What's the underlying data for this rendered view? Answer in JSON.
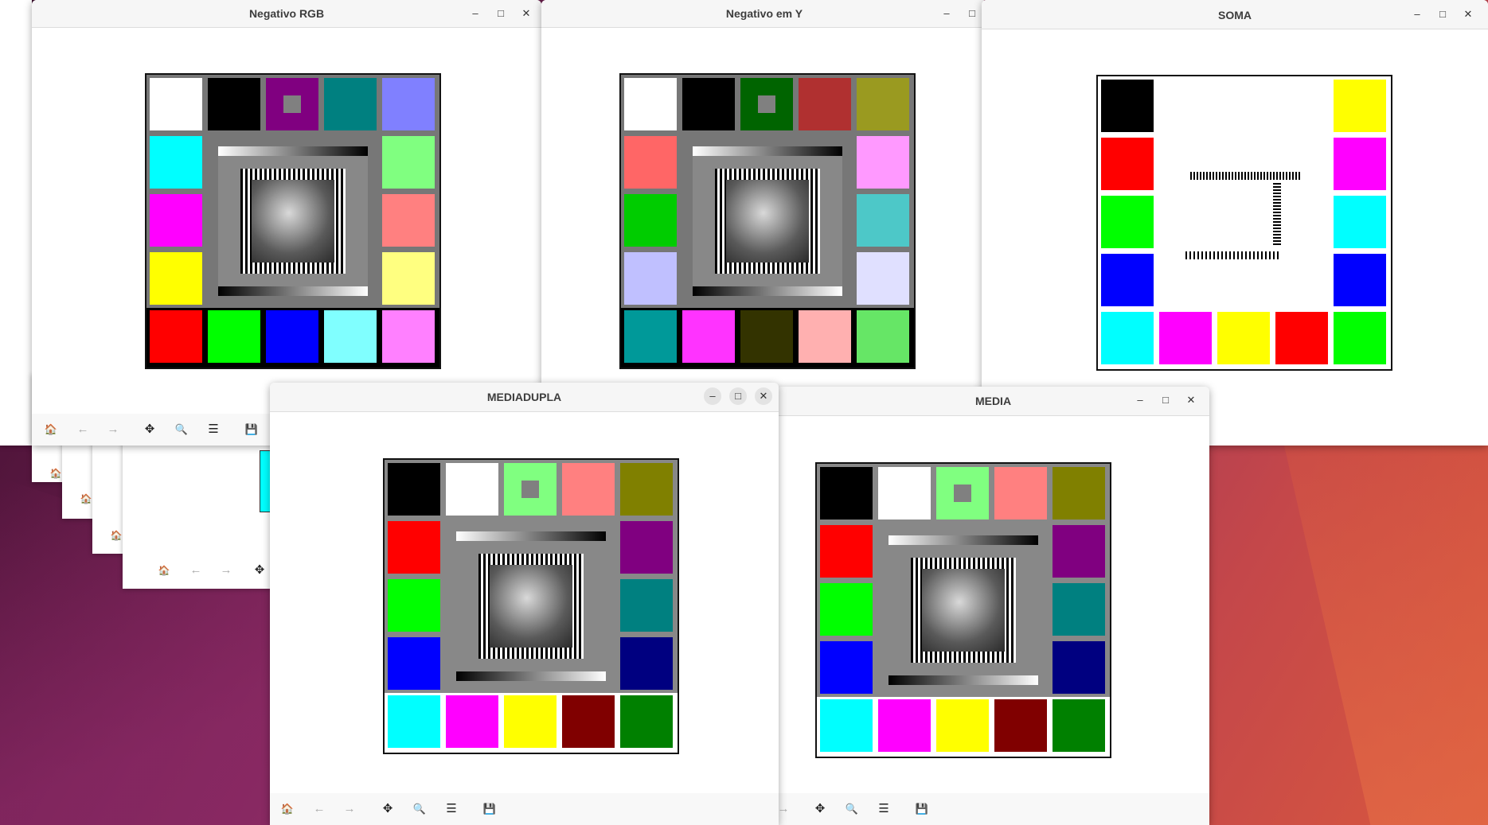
{
  "desktop": {},
  "windows": {
    "neg_rgb": {
      "title": "Negativo RGB"
    },
    "neg_y": {
      "title": "Negativo em Y"
    },
    "soma": {
      "title": "SOMA"
    },
    "mediadupla": {
      "title": "MEDIADUPLA"
    },
    "media": {
      "title": "MEDIA"
    }
  },
  "window_controls": {
    "minimize": "–",
    "maximize": "□",
    "close": "✕"
  },
  "toolbar_icons": {
    "home": "🏠",
    "back": "←",
    "forward": "→",
    "pan": "✥",
    "zoom": "🔍",
    "configure": "☰",
    "save": "💾"
  },
  "images": {
    "neg_rgb": {
      "grid": [
        [
          "#ffffff",
          "#000000",
          "#800080",
          "#008080",
          "#8080ff"
        ],
        [
          "#00ffff",
          "C",
          "C",
          "C",
          "#80ff80"
        ],
        [
          "#ff00ff",
          "C",
          "C",
          "C",
          "#ff8080"
        ],
        [
          "#ffff00",
          "C",
          "C",
          "C",
          "#ffff80"
        ],
        [
          "#ff0000",
          "#00ff00",
          "#0000ff",
          "#80ffff",
          "#ff80ff"
        ]
      ],
      "border": "#777777",
      "bottom_bg": "#000000"
    },
    "neg_y": {
      "grid": [
        [
          "#ffffff",
          "#000000",
          "#006400",
          "#b03030",
          "#9a9a20"
        ],
        [
          "#ff6666",
          "C",
          "C",
          "C",
          "#ff99ff"
        ],
        [
          "#00cc00",
          "C",
          "C",
          "C",
          "#4dc8c8"
        ],
        [
          "#c0c0ff",
          "C",
          "C",
          "C",
          "#e0e0ff"
        ],
        [
          "#009999",
          "#ff33ff",
          "#333300",
          "#ffb0b0",
          "#66e666"
        ]
      ],
      "border": "#777777",
      "bottom_bg": "#000000"
    },
    "soma": {
      "grid": [
        [
          "#000000",
          "W",
          "W",
          "W",
          "#ffff00"
        ],
        [
          "#ff0000",
          "W",
          "W",
          "W",
          "#ff00ff"
        ],
        [
          "#00ff00",
          "W",
          "W",
          "W",
          "#00ffff"
        ],
        [
          "#0000ff",
          "W",
          "W",
          "W",
          "#0000ff"
        ],
        [
          "#00ffff",
          "#ff00ff",
          "#ffff00",
          "#ff0000",
          "#00ff00"
        ]
      ],
      "border": "#ffffff",
      "bottom_bg": "#ffffff"
    },
    "mediadupla": {
      "grid": [
        [
          "#000000",
          "#ffffff",
          "#80ff80",
          "#ff8080",
          "#808000"
        ],
        [
          "#ff0000",
          "C",
          "C",
          "C",
          "#800080"
        ],
        [
          "#00ff00",
          "C",
          "C",
          "C",
          "#008080"
        ],
        [
          "#0000ff",
          "C",
          "C",
          "C",
          "#000080"
        ],
        [
          "#00ffff",
          "#ff00ff",
          "#ffff00",
          "#800000",
          "#008000"
        ]
      ],
      "border": "#888888",
      "bottom_bg": "#ffffff"
    },
    "media": {
      "grid": [
        [
          "#000000",
          "#ffffff",
          "#80ff80",
          "#ff8080",
          "#808000"
        ],
        [
          "#ff0000",
          "C",
          "C",
          "C",
          "#800080"
        ],
        [
          "#00ff00",
          "C",
          "C",
          "C",
          "#008080"
        ],
        [
          "#0000ff",
          "C",
          "C",
          "C",
          "#000080"
        ],
        [
          "#00ffff",
          "#ff00ff",
          "#ffff00",
          "#800000",
          "#008000"
        ]
      ],
      "border": "#888888",
      "bottom_bg": "#ffffff"
    }
  }
}
